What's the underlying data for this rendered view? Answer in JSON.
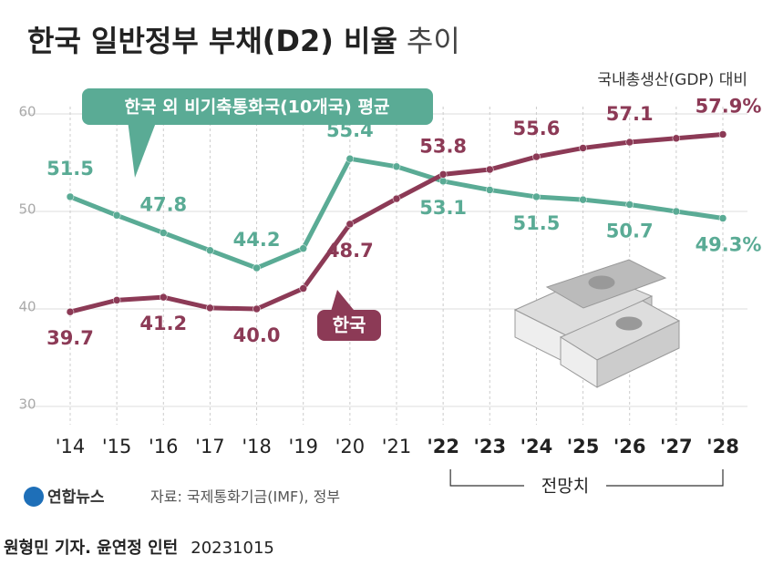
{
  "chart_data": {
    "type": "line",
    "title": "한국 일반정부 부채(D2) 비율",
    "title_suffix": "추이",
    "unit_label": "국내총생산(GDP) 대비",
    "categories": [
      "'14",
      "'15",
      "'16",
      "'17",
      "'18",
      "'19",
      "'20",
      "'21",
      "'22",
      "'23",
      "'24",
      "'25",
      "'26",
      "'27",
      "'28"
    ],
    "series": [
      {
        "name": "한국 외 비기축통화국(10개국) 평균",
        "color": "#5aab95",
        "values": [
          51.5,
          49.6,
          47.8,
          46.0,
          44.2,
          46.2,
          55.4,
          54.6,
          53.1,
          52.2,
          51.5,
          51.2,
          50.7,
          50.0,
          49.3
        ],
        "value_labels": [
          "51.5",
          null,
          "47.8",
          null,
          "44.2",
          null,
          "55.4",
          null,
          "53.1",
          null,
          "51.5",
          null,
          "50.7",
          null,
          "49.3%"
        ]
      },
      {
        "name": "한국",
        "color": "#8c3a56",
        "values": [
          39.7,
          40.9,
          41.2,
          40.1,
          40.0,
          42.1,
          48.7,
          51.3,
          53.8,
          54.3,
          55.6,
          56.5,
          57.1,
          57.5,
          57.9
        ],
        "value_labels": [
          "39.7",
          null,
          "41.2",
          null,
          "40.0",
          null,
          "48.7",
          null,
          "53.8",
          null,
          "55.6",
          null,
          "57.1",
          null,
          "57.9%"
        ]
      }
    ],
    "ylim": [
      30,
      60
    ],
    "yticks": [
      30,
      40,
      50,
      60
    ],
    "grid": true,
    "forecast": {
      "label": "전망치",
      "from": "'22"
    },
    "source": "자료: 국제통화기금(IMF), 정부",
    "logo": "연합뉴스",
    "byline": "원형민 기자. 윤연정 인턴",
    "date": "20231015"
  }
}
